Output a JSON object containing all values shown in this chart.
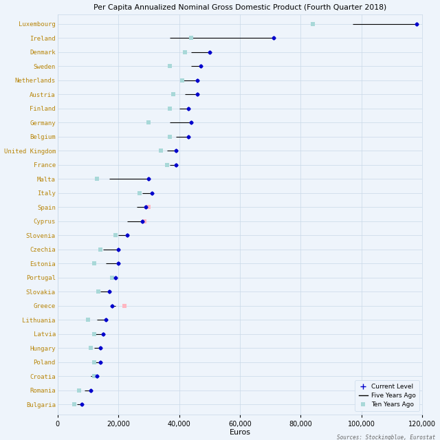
{
  "title": "Per Capita Annualized Nominal Gross Domestic Product (Fourth Quarter 2018)",
  "xlabel": "Euros",
  "source": "Sources: Stockingblue, Eurostat",
  "countries": [
    "Luxembourg",
    "Ireland",
    "Denmark",
    "Sweden",
    "Netherlands",
    "Austria",
    "Finland",
    "Germany",
    "Belgium",
    "United Kingdom",
    "France",
    "Malta",
    "Italy",
    "Spain",
    "Cyprus",
    "Slovenia",
    "Czechia",
    "Estonia",
    "Portugal",
    "Slovakia",
    "Greece",
    "Lithuania",
    "Latvia",
    "Hungary",
    "Poland",
    "Croatia",
    "Romania",
    "Bulgaria"
  ],
  "current": [
    118000,
    71000,
    50000,
    47000,
    46000,
    46000,
    43000,
    44000,
    43000,
    39000,
    39000,
    30000,
    31000,
    29000,
    28000,
    23000,
    20000,
    20000,
    19000,
    17000,
    18000,
    16000,
    15000,
    14000,
    14000,
    13000,
    11000,
    8000
  ],
  "five_years_ago": [
    97000,
    37000,
    44000,
    44000,
    41000,
    42000,
    40000,
    37000,
    39000,
    36000,
    37000,
    17000,
    28000,
    26000,
    23000,
    20000,
    15000,
    16000,
    18000,
    14000,
    19000,
    13000,
    12000,
    12000,
    12000,
    11000,
    9000,
    6500
  ],
  "ten_years_ago": [
    84000,
    44000,
    42000,
    37000,
    41000,
    38000,
    37000,
    30000,
    37000,
    34000,
    36000,
    13000,
    27000,
    30000,
    28500,
    19000,
    14000,
    12000,
    18000,
    13500,
    22000,
    10000,
    12000,
    11000,
    12000,
    12000,
    7000,
    5500
  ],
  "current_color": "#0000cc",
  "five_years_ago_color": "#000000",
  "ten_years_ago_positive_color": "#a8d8d8",
  "ten_years_ago_negative_color": "#ffb6c1",
  "label_color": "#b8860b",
  "background_color": "#eef4fb",
  "grid_color": "#c8d8e8",
  "xlim": [
    0,
    120000
  ],
  "xticks": [
    0,
    20000,
    40000,
    60000,
    80000,
    100000,
    120000
  ],
  "figsize": [
    6.4,
    6.4
  ],
  "dpi": 100
}
